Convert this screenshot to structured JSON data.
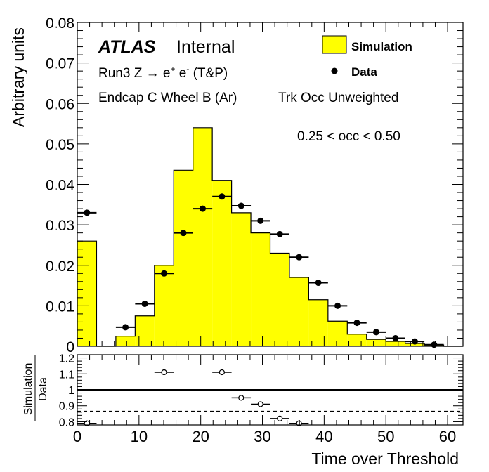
{
  "chart_data": {
    "type": "histogram",
    "xlabel": "Time over Threshold",
    "ylabel": "Arbitrary units",
    "xlim": [
      0,
      62.5
    ],
    "ylim": [
      0,
      0.08
    ],
    "x_ticks": [
      "0",
      "10",
      "20",
      "30",
      "40",
      "50",
      "60"
    ],
    "y_ticks": [
      "0",
      "0.01",
      "0.02",
      "0.03",
      "0.04",
      "0.05",
      "0.06",
      "0.07",
      "0.08"
    ],
    "bin_edges": [
      0,
      3.125,
      6.25,
      9.375,
      12.5,
      15.625,
      18.75,
      21.875,
      25,
      28.125,
      31.25,
      34.375,
      37.5,
      40.625,
      43.75,
      46.875,
      50,
      53.125,
      56.25,
      59.375,
      62.5
    ],
    "series": [
      {
        "name": "Simulation",
        "style": "filled-histogram",
        "color": "#ffff00",
        "values": [
          0.026,
          0,
          0.0025,
          0.0075,
          0.02,
          0.0435,
          0.054,
          0.041,
          0.033,
          0.028,
          0.023,
          0.017,
          0.0115,
          0.0062,
          0.003,
          0.0017,
          0.0012,
          0.0007,
          0.0003,
          0
        ]
      },
      {
        "name": "Data",
        "style": "points",
        "color": "#000000",
        "values": [
          0.033,
          null,
          0.0047,
          0.0105,
          0.018,
          0.028,
          0.034,
          0.037,
          0.0347,
          0.031,
          0.0277,
          0.022,
          0.0157,
          0.01,
          0.0058,
          0.0035,
          0.002,
          0.0012,
          0.0004,
          null
        ]
      }
    ],
    "ratio_panel": {
      "ylabel_numerator": "Simulation",
      "ylabel_denominator": "Data",
      "ylim": [
        0.78,
        1.22
      ],
      "y_ticks": [
        "0.8",
        "0.9",
        "1",
        "1.1",
        "1.2"
      ],
      "reference_lines": [
        {
          "value": 1.0,
          "style": "solid"
        },
        {
          "value": 0.865,
          "style": "dashed"
        }
      ],
      "points": [
        {
          "x": 1.5625,
          "y": 0.79
        },
        {
          "x": 14.0625,
          "y": 1.11
        },
        {
          "x": 23.4375,
          "y": 1.11
        },
        {
          "x": 26.5625,
          "y": 0.95
        },
        {
          "x": 29.6875,
          "y": 0.91
        },
        {
          "x": 32.8125,
          "y": 0.82
        },
        {
          "x": 35.9375,
          "y": 0.79
        }
      ]
    },
    "legend": [
      {
        "label": "Simulation",
        "style": "box",
        "color": "#ffff00"
      },
      {
        "label": "Data",
        "style": "marker",
        "color": "#000000"
      }
    ],
    "legend_position": "top-right",
    "annotations": {
      "experiment": "ATLAS",
      "status": "Internal",
      "line1": "Run3 Z",
      "line2": "Endcap C Wheel B (Ar)",
      "line3": "Trk Occ Unweighted",
      "occ_range": "0.25 < occ < 0.50"
    }
  }
}
